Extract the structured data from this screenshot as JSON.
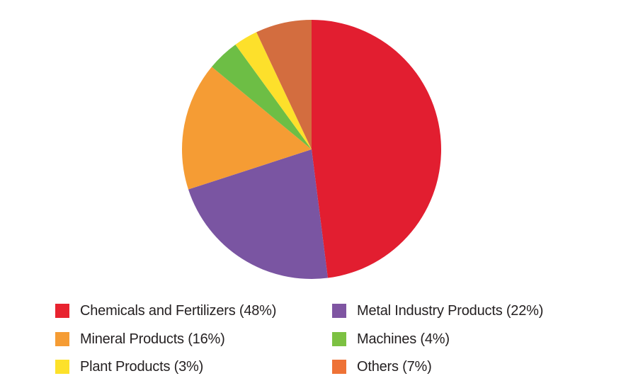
{
  "chart_data": {
    "type": "pie",
    "title": "",
    "start_angle": "top",
    "direction": "clockwise",
    "slices": [
      {
        "label": "Chemicals and Fertilizers (48%)",
        "name": "Chemicals and Fertilizers",
        "value": 48,
        "color": "#E21E30",
        "legend_color": "#E8232F"
      },
      {
        "label": "Metal Industry Products (22%)",
        "name": "Metal Industry Products",
        "value": 22,
        "color": "#7A55A2",
        "legend_color": "#7F55A2"
      },
      {
        "label": "Mineral Products (16%)",
        "name": "Mineral Products",
        "value": 16,
        "color": "#F59C34",
        "legend_color": "#F59C34"
      },
      {
        "label": "Machines (4%)",
        "name": "Machines",
        "value": 4,
        "color": "#6DBE45",
        "legend_color": "#7CC142"
      },
      {
        "label": "Plant Products (3%)",
        "name": "Plant Products",
        "value": 3,
        "color": "#FDE02B",
        "legend_color": "#FDE12A"
      },
      {
        "label": "Others (7%)",
        "name": "Others",
        "value": 7,
        "color": "#D36D3F",
        "legend_color": "#EE7236"
      }
    ],
    "legend_placement": "bottom"
  }
}
